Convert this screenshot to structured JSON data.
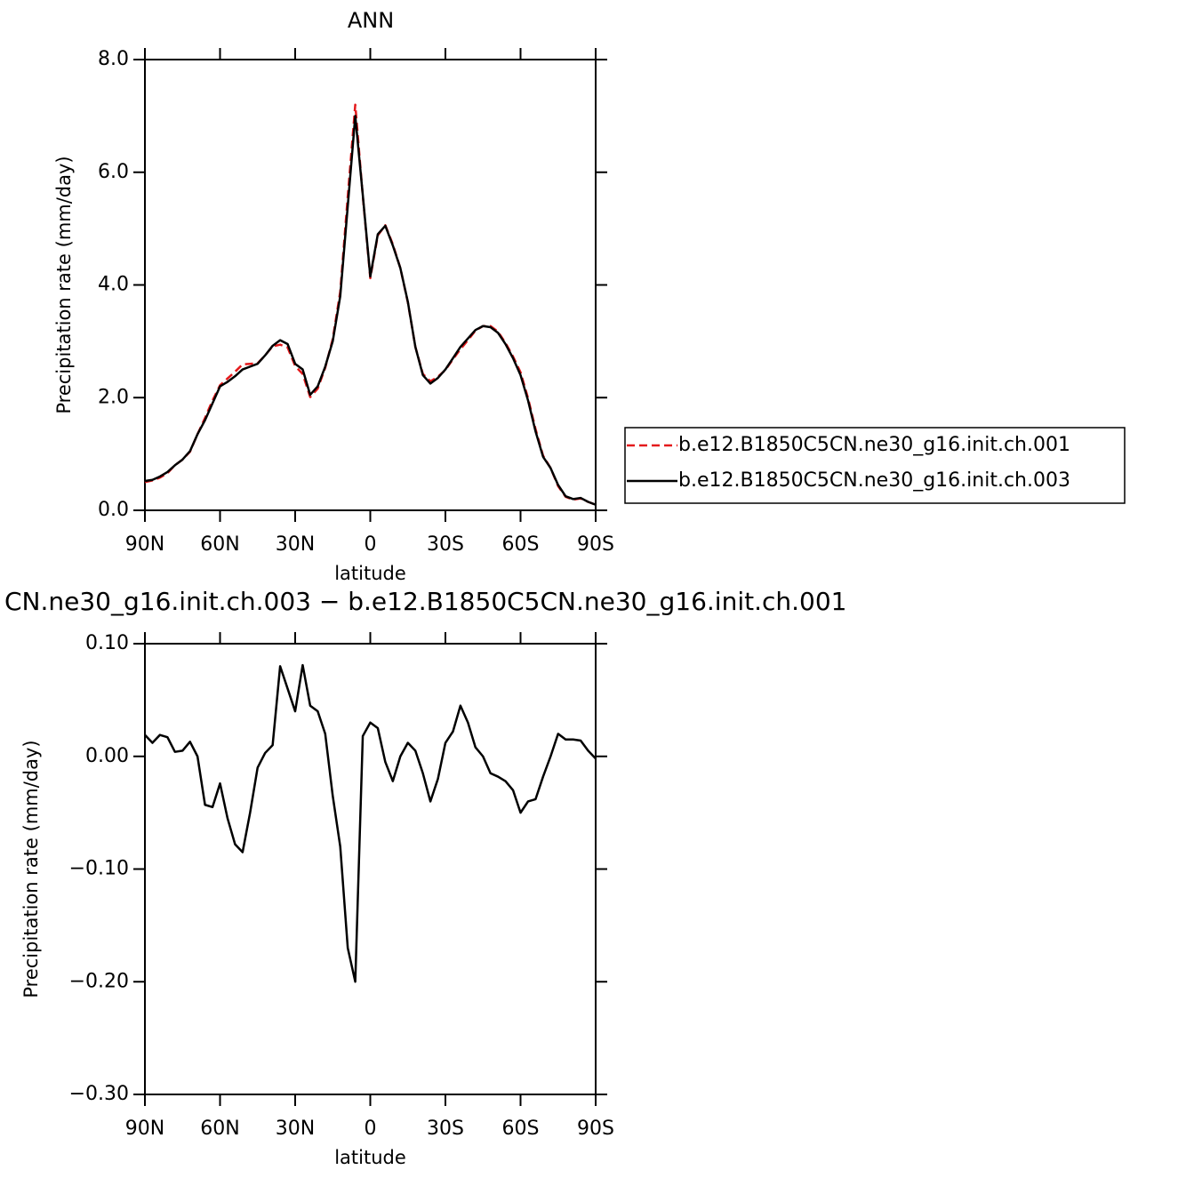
{
  "chart_data": [
    {
      "type": "line",
      "title": "ANN",
      "xlabel": "latitude",
      "ylabel": "Precipitation rate  (mm/day)",
      "x": [
        90,
        87,
        84,
        81,
        78,
        75,
        72,
        69,
        66,
        63,
        60,
        57,
        54,
        51,
        48,
        45,
        42,
        39,
        36,
        33,
        30,
        27,
        24,
        21,
        18,
        15,
        12,
        9,
        6,
        3,
        0,
        -3,
        -6,
        -9,
        -12,
        -15,
        -18,
        -21,
        -24,
        -27,
        -30,
        -33,
        -36,
        -39,
        -42,
        -45,
        -48,
        -51,
        -54,
        -57,
        -60,
        -63,
        -66,
        -69,
        -72,
        -75,
        -78,
        -81,
        -84,
        -87,
        -90
      ],
      "xlim": [
        90,
        -90
      ],
      "xticks": [
        {
          "value": 90,
          "label": "90N"
        },
        {
          "value": 60,
          "label": "60N"
        },
        {
          "value": 30,
          "label": "30N"
        },
        0,
        {
          "value": -30,
          "label": "30S"
        },
        {
          "value": -60,
          "label": "60S"
        },
        {
          "value": -90,
          "label": "90S"
        }
      ],
      "ylim": [
        0,
        8
      ],
      "yticks": [
        {
          "value": 0,
          "label": "0.0"
        },
        {
          "value": 2,
          "label": "2.0"
        },
        {
          "value": 4,
          "label": "4.0"
        },
        {
          "value": 6,
          "label": "6.0"
        },
        {
          "value": 8,
          "label": "8.0"
        }
      ],
      "legend": "right",
      "series": [
        {
          "name": "b.e12.B1850C5CN.ne30_g16.init.ch.001",
          "color": "#e41a1c",
          "linestyle": "dashed",
          "values": [
            0.5,
            0.53,
            0.58,
            0.66,
            0.8,
            0.9,
            1.04,
            1.35,
            1.64,
            1.95,
            2.22,
            2.34,
            2.46,
            2.59,
            2.6,
            2.61,
            2.75,
            2.91,
            2.94,
            2.89,
            2.56,
            2.42,
            2.01,
            2.16,
            2.53,
            3.04,
            3.88,
            5.57,
            7.2,
            5.58,
            4.12,
            4.88,
            5.06,
            4.72,
            4.3,
            3.69,
            2.9,
            2.42,
            2.29,
            2.37,
            2.49,
            2.68,
            2.86,
            3.02,
            3.19,
            3.27,
            3.27,
            3.17,
            2.97,
            2.73,
            2.45,
            1.99,
            1.44,
            0.97,
            0.75,
            0.43,
            0.24,
            0.19,
            0.21,
            0.15,
            0.1
          ]
        },
        {
          "name": "b.e12.B1850C5CN.ne30_g16.init.ch.003",
          "color": "#000000",
          "linestyle": "solid",
          "values": [
            0.52,
            0.54,
            0.6,
            0.68,
            0.8,
            0.9,
            1.05,
            1.35,
            1.6,
            1.9,
            2.2,
            2.28,
            2.38,
            2.5,
            2.55,
            2.6,
            2.75,
            2.92,
            3.02,
            2.95,
            2.6,
            2.5,
            2.05,
            2.2,
            2.55,
            3.0,
            3.8,
            5.4,
            7.0,
            5.6,
            4.15,
            4.9,
            5.05,
            4.7,
            4.3,
            3.7,
            2.9,
            2.4,
            2.25,
            2.35,
            2.5,
            2.7,
            2.9,
            3.05,
            3.2,
            3.27,
            3.25,
            3.15,
            2.95,
            2.7,
            2.4,
            1.95,
            1.4,
            0.95,
            0.75,
            0.45,
            0.25,
            0.2,
            0.22,
            0.15,
            0.1
          ]
        }
      ]
    },
    {
      "type": "line",
      "title": "CN.ne30_g16.init.ch.003 − b.e12.B1850C5CN.ne30_g16.init.ch.001",
      "xlabel": "latitude",
      "ylabel": "Precipitation rate  (mm/day)",
      "x": [
        90,
        87,
        84,
        81,
        78,
        75,
        72,
        69,
        66,
        63,
        60,
        57,
        54,
        51,
        48,
        45,
        42,
        39,
        36,
        33,
        30,
        27,
        24,
        21,
        18,
        15,
        12,
        9,
        6,
        3,
        0,
        -3,
        -6,
        -9,
        -12,
        -15,
        -18,
        -21,
        -24,
        -27,
        -30,
        -33,
        -36,
        -39,
        -42,
        -45,
        -48,
        -51,
        -54,
        -57,
        -60,
        -63,
        -66,
        -69,
        -72,
        -75,
        -78,
        -81,
        -84,
        -87,
        -90
      ],
      "xlim": [
        90,
        -90
      ],
      "xticks": [
        {
          "value": 90,
          "label": "90N"
        },
        {
          "value": 60,
          "label": "60N"
        },
        {
          "value": 30,
          "label": "30N"
        },
        0,
        {
          "value": -30,
          "label": "30S"
        },
        {
          "value": -60,
          "label": "60S"
        },
        {
          "value": -90,
          "label": "90S"
        }
      ],
      "ylim": [
        -0.3,
        0.1
      ],
      "yticks": [
        {
          "value": 0.1,
          "label": "0.10"
        },
        {
          "value": 0,
          "label": "0.00"
        },
        {
          "value": -0.1,
          "label": "−0.10"
        },
        {
          "value": -0.2,
          "label": "−0.20"
        },
        {
          "value": -0.3,
          "label": "−0.30"
        }
      ],
      "color": "#000000",
      "values": [
        0.019,
        0.012,
        0.019,
        0.017,
        0.004,
        0.005,
        0.013,
        0.0,
        -0.043,
        -0.045,
        -0.024,
        -0.055,
        -0.078,
        -0.085,
        -0.05,
        -0.01,
        0.003,
        0.01,
        0.08,
        0.06,
        0.04,
        0.081,
        0.045,
        0.04,
        0.02,
        -0.035,
        -0.08,
        -0.17,
        -0.2,
        0.018,
        0.03,
        0.025,
        -0.005,
        -0.022,
        0.0,
        0.012,
        0.005,
        -0.015,
        -0.04,
        -0.02,
        0.012,
        0.022,
        0.045,
        0.03,
        0.008,
        0.0,
        -0.015,
        -0.018,
        -0.022,
        -0.03,
        -0.05,
        -0.04,
        -0.038,
        -0.018,
        0.0,
        0.02,
        0.015,
        0.015,
        0.014,
        0.005,
        -0.002
      ]
    }
  ]
}
